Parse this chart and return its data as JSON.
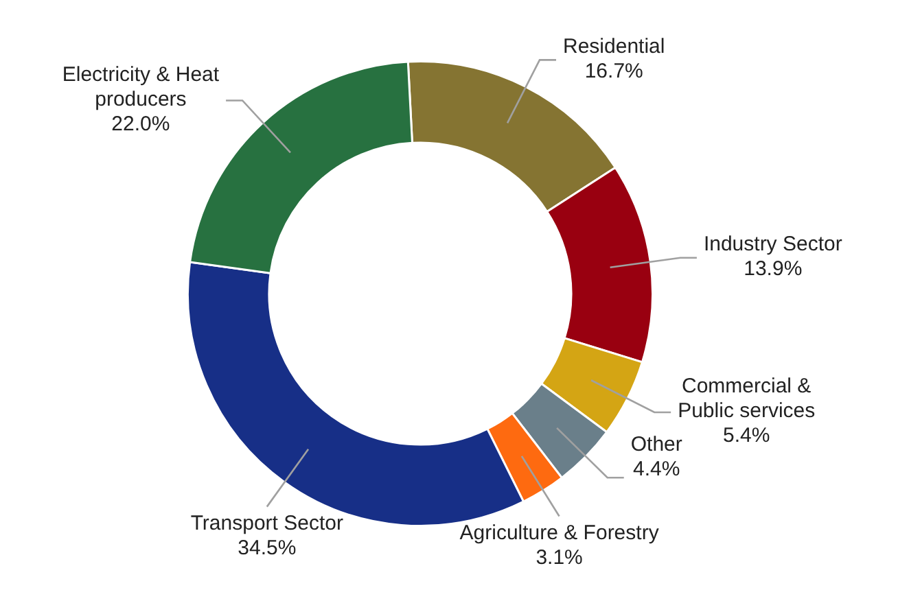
{
  "chart_data": {
    "type": "donut",
    "categories": [
      "Residential",
      "Industry Sector",
      "Commercial &\nPublic services",
      "Other",
      "Agriculture & Forestry",
      "Transport Sector",
      "Electricity & Heat\nproducers"
    ],
    "values": [
      16.7,
      13.9,
      5.4,
      4.4,
      3.1,
      34.5,
      22.0
    ],
    "colors": [
      "#857432",
      "#990010",
      "#d4a514",
      "#6a7f8a",
      "#fe6a10",
      "#172f87",
      "#277140"
    ],
    "value_labels": [
      "16.7%",
      "13.9%",
      "5.4%",
      "4.4%",
      "3.1%",
      "34.5%",
      "22.0%"
    ],
    "legend": false
  }
}
